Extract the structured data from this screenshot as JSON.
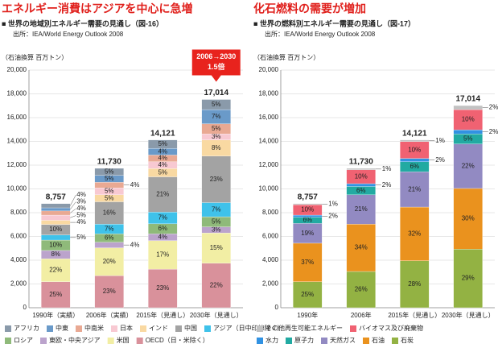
{
  "chart_data": [
    {
      "type": "stacked_bar",
      "title": "エネルギー消費はアジアを中心に急増",
      "subtitle": "■ 世界の地域別エネルギー需要の見通し（図-16）",
      "source": "出所：IEA/World Energy Outlook 2008",
      "y_label": "（石油換算 百万トン）",
      "annotation": [
        "2006→2030",
        "1.5倍"
      ],
      "categories": [
        "1990年（実績）",
        "2006年（実績）",
        "2015年（見通し）",
        "2030年（見通し）"
      ],
      "totals": {
        "values": [
          8757,
          11730,
          14121,
          17014
        ],
        "value_labels": [
          "8,757",
          "11,730",
          "14,121",
          "17,014"
        ]
      },
      "ylim": [
        0,
        20000
      ],
      "yticks": [
        0,
        {
          "value": 2000,
          "label": "2,000"
        },
        {
          "value": 4000,
          "label": "4,000"
        },
        {
          "value": 6000,
          "label": "6,000"
        },
        {
          "value": 8000,
          "label": "8,000"
        },
        {
          "value": 10000,
          "label": "10,000"
        },
        {
          "value": 12000,
          "label": "12,000"
        },
        {
          "value": 14000,
          "label": "14,000"
        },
        {
          "value": 16000,
          "label": "16,000"
        },
        {
          "value": 18000,
          "label": "18,000"
        },
        {
          "value": 20000,
          "label": "20,000"
        }
      ],
      "grid": true,
      "series": [
        {
          "name": "OECD（日・米除く）",
          "color": "#d9919b",
          "values": [
            25,
            23,
            23,
            22
          ],
          "value_labels": [
            "25%",
            "23%",
            "23%",
            "22%"
          ]
        },
        {
          "name": "米国",
          "color": "#f2eea4",
          "values": [
            22,
            20,
            17,
            15
          ],
          "value_labels": [
            "22%",
            "20%",
            "17%",
            "15%"
          ]
        },
        {
          "name": "東欧・中央アジア",
          "color": "#bba3cc",
          "values": [
            8,
            4,
            4,
            3
          ],
          "value_labels": [
            "8%",
            "4%",
            "4%",
            "3%"
          ]
        },
        {
          "name": "ロシア",
          "color": "#8fba7a",
          "values": [
            10,
            6,
            6,
            5
          ],
          "value_labels": [
            "10%",
            "6%",
            "6%",
            "5%"
          ]
        },
        {
          "name": "アジア（日中印韓除く）",
          "color": "#3fc2ea",
          "values": [
            5,
            7,
            7,
            7
          ],
          "value_labels": [
            "5%",
            "7%",
            "7%",
            "7%"
          ]
        },
        {
          "name": "中国",
          "color": "#a3a3a3",
          "values": [
            10,
            16,
            21,
            23
          ],
          "value_labels": [
            "10%",
            "16%",
            "21%",
            "23%"
          ]
        },
        {
          "name": "インド",
          "color": "#f9d9a2",
          "values": [
            4,
            5,
            5,
            8
          ],
          "value_labels": [
            "4%",
            "5%",
            "5%",
            "8%"
          ]
        },
        {
          "name": "日本",
          "color": "#f8c9d2",
          "values": [
            5,
            5,
            4,
            3
          ],
          "value_labels": [
            "5%",
            "5%",
            "4%",
            "3%"
          ]
        },
        {
          "name": "中南米",
          "color": "#e9a993",
          "values": [
            4,
            4,
            4,
            5
          ],
          "value_labels": [
            "4%",
            "4%",
            "4%",
            "5%"
          ]
        },
        {
          "name": "中東",
          "color": "#6a9ac9",
          "values": [
            3,
            5,
            4,
            7
          ],
          "value_labels": [
            "3%",
            "5%",
            "4%",
            "7%"
          ]
        },
        {
          "name": "アフリカ",
          "color": "#8a9aaa",
          "values": [
            4,
            5,
            5,
            5
          ],
          "value_labels": [
            "4%",
            "5%",
            "5%",
            "5%"
          ]
        }
      ]
    },
    {
      "type": "stacked_bar",
      "title": "化石燃料の需要が増加",
      "subtitle": "■ 世界の燃料別エネルギー需要の見通し（図-17）",
      "source": "出所：IEA/World Energy Outlook 2008",
      "y_label": "（石油換算 百万トン）",
      "categories": [
        "1990年",
        "2006年",
        "2015年（見通し）",
        "2030年（見通し）"
      ],
      "totals": {
        "values": [
          8757,
          11730,
          14121,
          17014
        ],
        "value_labels": [
          "8,757",
          "11,730",
          "14,121",
          "17,014"
        ]
      },
      "ylim": [
        0,
        20000
      ],
      "yticks": [
        0,
        {
          "value": 2000,
          "label": "2,000"
        },
        {
          "value": 4000,
          "label": "4,000"
        },
        {
          "value": 6000,
          "label": "6,000"
        },
        {
          "value": 8000,
          "label": "8,000"
        },
        {
          "value": 10000,
          "label": "10,000"
        },
        {
          "value": 12000,
          "label": "12,000"
        },
        {
          "value": 14000,
          "label": "14,000"
        },
        {
          "value": 16000,
          "label": "16,000"
        },
        {
          "value": 18000,
          "label": "18,000"
        },
        {
          "value": 20000,
          "label": "20,000"
        }
      ],
      "grid": true,
      "series": [
        {
          "name": "石炭",
          "color": "#93b243",
          "values": [
            25,
            26,
            28,
            29
          ],
          "value_labels": [
            "25%",
            "26%",
            "28%",
            "29%"
          ]
        },
        {
          "name": "石油",
          "color": "#ea921e",
          "values": [
            37,
            34,
            32,
            30
          ],
          "value_labels": [
            "37%",
            "34%",
            "32%",
            "30%"
          ]
        },
        {
          "name": "天然ガス",
          "color": "#928ac2",
          "values": [
            19,
            21,
            21,
            22
          ],
          "value_labels": [
            "19%",
            "21%",
            "21%",
            "22%"
          ]
        },
        {
          "name": "原子力",
          "color": "#22aaa2",
          "values": [
            6,
            6,
            6,
            5
          ],
          "value_labels": [
            "6%",
            "6%",
            "6%",
            "5%"
          ]
        },
        {
          "name": "水力",
          "color": "#3192e2",
          "values": [
            2,
            2,
            2,
            2
          ],
          "value_labels": [
            "2%",
            "2%",
            "2%",
            "2%"
          ]
        },
        {
          "name": "バイオマス及び廃棄物",
          "color": "#f06272",
          "values": [
            10,
            10,
            10,
            10
          ],
          "value_labels": [
            "10%",
            "10%",
            "10%",
            "10%"
          ]
        },
        {
          "name": "その他再生可能エネルギー",
          "color": "#c2c2c2",
          "values": [
            1,
            1,
            1,
            2
          ],
          "value_labels": [
            "1%",
            "1%",
            "1%",
            "2%"
          ]
        }
      ]
    }
  ]
}
